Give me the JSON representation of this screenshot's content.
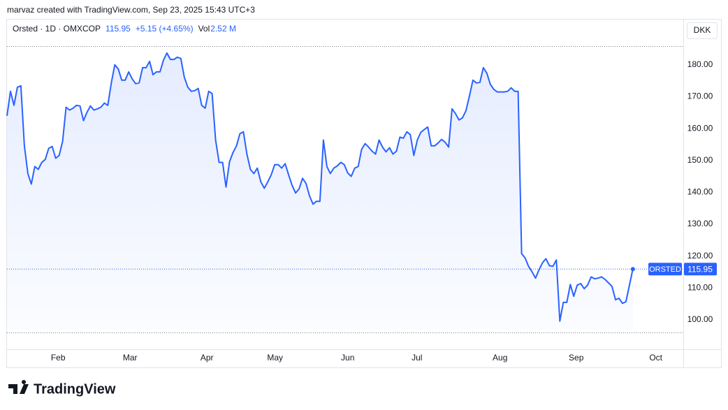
{
  "header": "marvaz created with TradingView.com, Sep 23, 2025 15:43 UTC+3",
  "logo": "TradingView",
  "chart_data": {
    "type": "line",
    "legend_symbol": "Orsted · 1D · OMXCOP",
    "change": "+5.15 (+4.65%)",
    "volume_label": "Vol",
    "volume": "2.52 M",
    "currency": "DKK",
    "x": [
      0,
      1,
      2,
      3,
      4,
      5,
      6,
      7,
      8,
      9,
      10,
      11,
      12,
      13,
      14,
      15,
      16,
      17,
      18,
      19,
      20,
      21,
      22,
      23,
      24,
      25,
      26,
      27,
      28,
      29,
      30,
      31,
      32,
      33,
      34,
      35,
      36,
      37,
      38,
      39,
      40,
      41,
      42,
      43,
      44,
      45,
      46,
      47,
      48,
      49,
      50,
      51,
      52,
      53,
      54,
      55,
      56,
      57,
      58,
      59,
      60,
      61,
      62,
      63,
      64,
      65,
      66,
      67,
      68,
      69,
      70,
      71,
      72,
      73,
      74,
      75,
      76,
      77,
      78,
      79,
      80,
      81,
      82,
      83,
      84,
      85,
      86,
      87,
      88,
      89,
      90,
      91,
      92,
      93,
      94,
      95,
      96,
      97,
      98,
      99,
      100,
      101,
      102,
      103,
      104,
      105,
      106,
      107,
      108,
      109,
      110,
      111,
      112,
      113,
      114,
      115,
      116,
      117,
      118,
      119,
      120,
      121,
      122,
      123,
      124,
      125,
      126,
      127,
      128,
      129,
      130,
      131,
      132,
      133,
      134,
      135,
      136,
      137,
      138,
      139,
      140,
      141,
      142,
      143,
      144,
      145,
      146,
      147,
      148,
      149,
      150,
      151,
      152,
      153,
      154,
      155,
      156,
      157,
      158,
      159,
      160,
      161,
      162,
      163,
      164,
      165,
      166,
      167,
      168,
      169,
      170,
      171,
      172,
      173,
      174,
      175,
      176,
      177,
      178,
      180
    ],
    "series": [
      {
        "name": "ORSTED",
        "color": "#2962ff",
        "values": [
          164.0,
          171.7,
          167.3,
          173.0,
          173.4,
          154.6,
          145.9,
          142.6,
          148.1,
          147.2,
          149.4,
          150.3,
          153.8,
          154.4,
          150.7,
          151.6,
          156.0,
          166.7,
          165.8,
          166.4,
          167.3,
          167.1,
          162.5,
          165.1,
          167.1,
          165.8,
          166.2,
          166.7,
          168.0,
          167.3,
          174.3,
          180.0,
          178.7,
          175.2,
          175.2,
          177.8,
          175.6,
          174.1,
          174.3,
          179.1,
          179.1,
          181.1,
          176.9,
          177.8,
          177.8,
          181.5,
          183.7,
          181.7,
          181.7,
          182.4,
          182.0,
          176.1,
          173.0,
          171.7,
          171.9,
          172.6,
          167.3,
          166.4,
          171.7,
          171.0,
          156.4,
          149.4,
          149.4,
          141.7,
          149.6,
          152.5,
          154.6,
          158.4,
          159.0,
          152.0,
          147.2,
          145.9,
          147.6,
          143.3,
          141.3,
          143.3,
          145.5,
          148.7,
          148.7,
          147.6,
          149.0,
          145.5,
          142.2,
          139.8,
          141.1,
          144.4,
          142.8,
          138.9,
          136.3,
          137.2,
          137.2,
          156.4,
          148.1,
          145.9,
          147.6,
          148.3,
          149.4,
          148.7,
          146.1,
          145.0,
          147.6,
          148.1,
          153.5,
          155.3,
          154.2,
          152.9,
          152.0,
          156.4,
          154.2,
          152.7,
          154.0,
          152.0,
          152.9,
          157.3,
          157.0,
          159.0,
          158.1,
          151.6,
          156.4,
          158.8,
          159.7,
          160.5,
          154.6,
          154.6,
          155.5,
          156.6,
          155.7,
          154.2,
          166.2,
          164.7,
          162.7,
          163.4,
          165.6,
          170.2,
          175.2,
          174.3,
          174.5,
          179.1,
          177.4,
          173.9,
          172.3,
          171.5,
          171.5,
          171.5,
          171.7,
          172.8,
          171.7,
          171.7,
          120.8,
          119.4,
          116.8,
          115.1,
          113.1,
          115.7,
          117.9,
          119.2,
          117.0,
          116.8,
          118.8,
          99.6,
          105.5,
          105.5,
          111.1,
          107.4,
          110.9,
          111.4,
          109.8,
          110.9,
          113.5,
          112.9,
          113.1,
          113.5,
          112.7,
          111.6,
          110.5,
          106.3,
          106.8,
          105.2,
          105.7,
          115.95
        ]
      }
    ],
    "xlim": [
      0,
      194.5
    ],
    "xticks": [
      {
        "value": 14.7,
        "label": "Feb"
      },
      {
        "value": 35.4,
        "label": "Mar"
      },
      {
        "value": 57.5,
        "label": "Apr"
      },
      {
        "value": 77.1,
        "label": "May"
      },
      {
        "value": 98.0,
        "label": "Jun"
      },
      {
        "value": 117.9,
        "label": "Jul"
      },
      {
        "value": 141.8,
        "label": "Aug"
      },
      {
        "value": 163.7,
        "label": "Sep"
      },
      {
        "value": 186.6,
        "label": "Oct"
      }
    ],
    "ylim": [
      90.8,
      194.2
    ],
    "yticks": [
      {
        "value": 100,
        "label": "100.00"
      },
      {
        "value": 110,
        "label": "110.00"
      },
      {
        "value": 120,
        "label": "120.00"
      },
      {
        "value": 130,
        "label": "130.00"
      },
      {
        "value": 140,
        "label": "140.00"
      },
      {
        "value": 150,
        "label": "150.00"
      },
      {
        "value": 160,
        "label": "160.00"
      },
      {
        "value": 170,
        "label": "170.00"
      },
      {
        "value": 180,
        "label": "180.00"
      }
    ],
    "grid": false
  }
}
